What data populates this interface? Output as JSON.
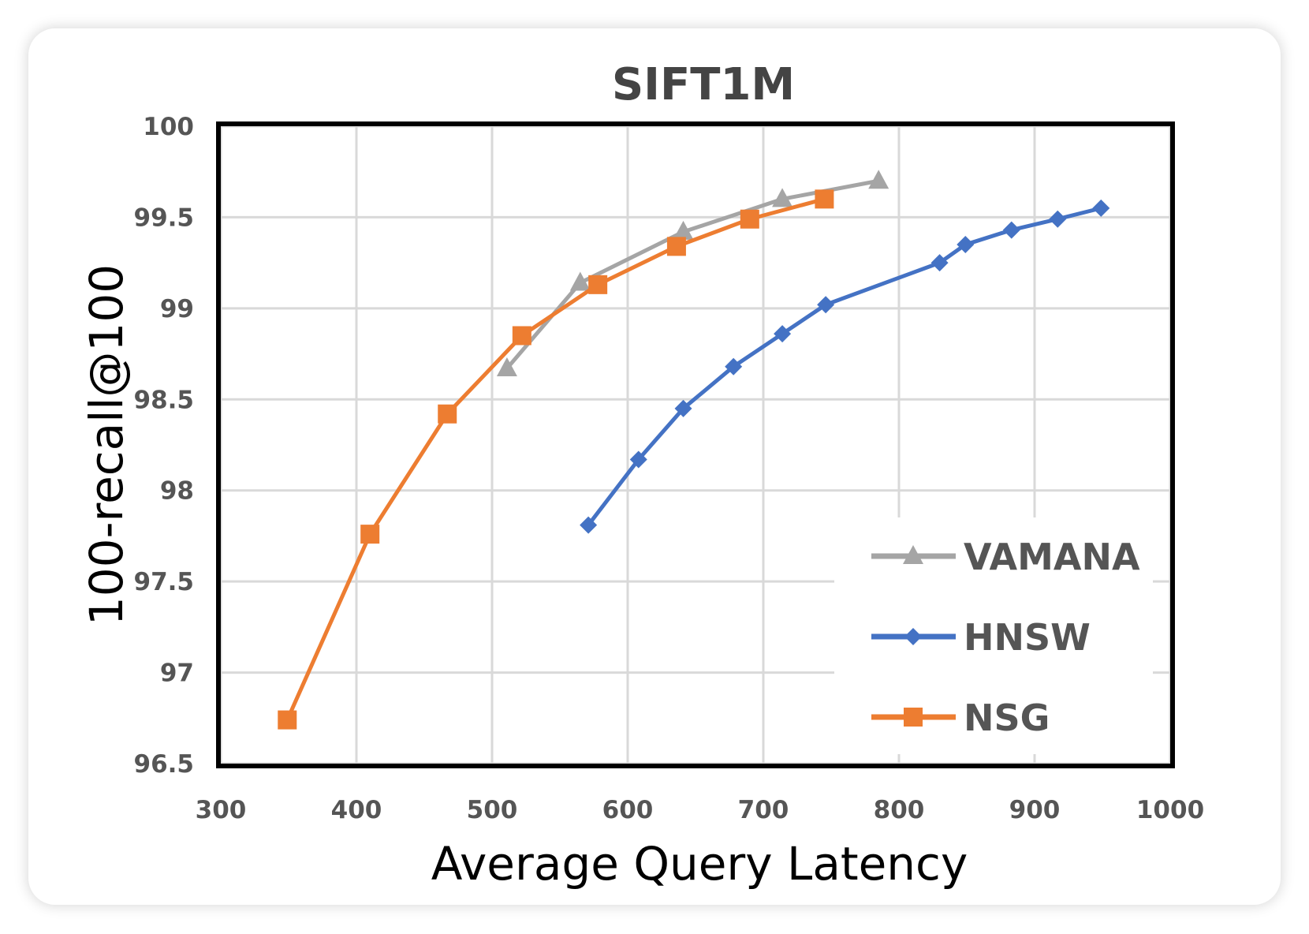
{
  "chart_data": {
    "type": "line",
    "title": "SIFT1M",
    "xlabel": "Average Query Latency",
    "ylabel": "100-recall@100",
    "xlim": [
      300,
      1000
    ],
    "ylim": [
      96.5,
      100
    ],
    "xticks": [
      "300",
      "400",
      "500",
      "600",
      "700",
      "800",
      "900",
      "1000"
    ],
    "yticks": [
      "100",
      "99.5",
      "99",
      "98.5",
      "98",
      "97.5",
      "97",
      "96.5"
    ],
    "grid": true,
    "legend_position": "bottom-right",
    "series": [
      {
        "name": "VAMANA",
        "color": "#A5A5A5",
        "marker": "triangle",
        "x": [
          511,
          565,
          641,
          714,
          785
        ],
        "y": [
          98.67,
          99.14,
          99.42,
          99.6,
          99.7
        ]
      },
      {
        "name": "HNSW",
        "color": "#4472C4",
        "marker": "diamond",
        "x": [
          571,
          608,
          641,
          678,
          714,
          746,
          830,
          849,
          883,
          917,
          949
        ],
        "y": [
          97.81,
          98.17,
          98.45,
          98.68,
          98.86,
          99.02,
          99.25,
          99.35,
          99.43,
          99.49,
          99.55
        ]
      },
      {
        "name": "NSG",
        "color": "#ED7D31",
        "marker": "square",
        "x": [
          349,
          410,
          467,
          522,
          578,
          636,
          690,
          745
        ],
        "y": [
          96.74,
          97.76,
          98.42,
          98.85,
          99.13,
          99.34,
          99.49,
          99.6
        ]
      }
    ]
  }
}
